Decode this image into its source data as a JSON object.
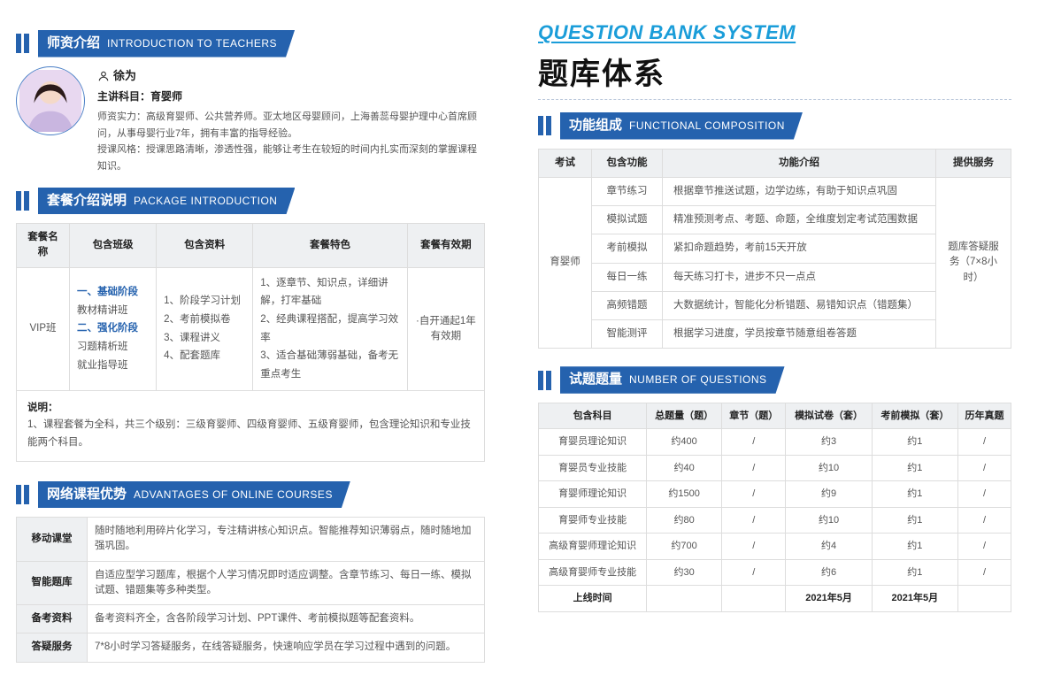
{
  "colors": {
    "primary": "#2562ae",
    "accent": "#1a9dd9",
    "border": "#dddddd",
    "header_bg": "#eef0f2",
    "text": "#333333",
    "muted": "#555555"
  },
  "sections": {
    "teachers": {
      "cn": "师资介绍",
      "en": "INTRODUCTION TO TEACHERS"
    },
    "package": {
      "cn": "套餐介绍说明",
      "en": "PACKAGE INTRODUCTION"
    },
    "advantage": {
      "cn": "网络课程优势",
      "en": "ADVANTAGES OF ONLINE COURSES"
    },
    "functional": {
      "cn": "功能组成",
      "en": "FUNCTIONAL COMPOSITION"
    },
    "questions": {
      "cn": "试题题量",
      "en": "NUMBER OF QUESTIONS"
    }
  },
  "teacher": {
    "name": "徐为",
    "subject_label": "主讲科目：育婴师",
    "strength_label": "师资实力：",
    "strength": "高级育婴师、公共营养师。亚太地区母婴顾问，上海善蕊母婴护理中心首席顾问，从事母婴行业7年，拥有丰富的指导经验。",
    "style_label": "授课风格：",
    "style": "授课思路清晰，渗透性强，能够让考生在较短的时间内扎实而深刻的掌握课程知识。"
  },
  "package_table": {
    "headers": [
      "套餐名称",
      "包含班级",
      "包含资料",
      "套餐特色",
      "套餐有效期"
    ],
    "row": {
      "name": "VIP班",
      "classes": {
        "stage1": "一、基础阶段",
        "c1": "教材精讲班",
        "stage2": "二、强化阶段",
        "c2": "习题精析班",
        "c3": "就业指导班"
      },
      "materials": [
        "1、阶段学习计划",
        "2、考前模拟卷",
        "3、课程讲义",
        "4、配套题库"
      ],
      "features": [
        "1、逐章节、知识点，详细讲解，打牢基础",
        "2、经典课程搭配，提高学习效率",
        "3、适合基础薄弱基础，备考无重点考生"
      ],
      "validity": "·自开通起1年有效期"
    },
    "note_label": "说明：",
    "note": "1、课程套餐为全科，共三个级别：三级育婴师、四级育婴师、五级育婴师，包含理论知识和专业技能两个科目。"
  },
  "advantages": [
    {
      "name": "移动课堂",
      "desc": "随时随地利用碎片化学习，专注精讲核心知识点。智能推荐知识薄弱点，随时随地加强巩固。"
    },
    {
      "name": "智能题库",
      "desc": "自适应型学习题库，根据个人学习情况即时适应调整。含章节练习、每日一练、模拟试题、错题集等多种类型。"
    },
    {
      "name": "备考资料",
      "desc": "备考资料齐全，含各阶段学习计划、PPT课件、考前模拟题等配套资料。"
    },
    {
      "name": "答疑服务",
      "desc": "7*8小时学习答疑服务，在线答疑服务，快速响应学员在学习过程中遇到的问题。"
    }
  ],
  "bank_header": {
    "en": "QUESTION BANK SYSTEM",
    "cn": "题库体系"
  },
  "functional_table": {
    "headers": [
      "考试",
      "包含功能",
      "功能介绍",
      "提供服务"
    ],
    "exam": "育婴师",
    "service": "题库答疑服务（7×8小时）",
    "rows": [
      {
        "fn": "章节练习",
        "desc": "根据章节推送试题，边学边练，有助于知识点巩固"
      },
      {
        "fn": "模拟试题",
        "desc": "精准预测考点、考题、命题，全维度划定考试范围数据"
      },
      {
        "fn": "考前模拟",
        "desc": "紧扣命题趋势，考前15天开放"
      },
      {
        "fn": "每日一练",
        "desc": "每天练习打卡，进步不只一点点"
      },
      {
        "fn": "高频错题",
        "desc": "大数据统计，智能化分析错题、易错知识点（错题集）"
      },
      {
        "fn": "智能测评",
        "desc": "根据学习进度，学员按章节随意组卷答题"
      }
    ]
  },
  "question_count": {
    "headers": [
      "包含科目",
      "总题量（题）",
      "章节（题）",
      "模拟试卷（套）",
      "考前模拟（套）",
      "历年真题"
    ],
    "rows": [
      [
        "育婴员理论知识",
        "约400",
        "/",
        "约3",
        "约1",
        "/"
      ],
      [
        "育婴员专业技能",
        "约40",
        "/",
        "约10",
        "约1",
        "/"
      ],
      [
        "育婴师理论知识",
        "约1500",
        "/",
        "约9",
        "约1",
        "/"
      ],
      [
        "育婴师专业技能",
        "约80",
        "/",
        "约10",
        "约1",
        "/"
      ],
      [
        "高级育婴师理论知识",
        "约700",
        "/",
        "约4",
        "约1",
        "/"
      ],
      [
        "高级育婴师专业技能",
        "约30",
        "/",
        "约6",
        "约1",
        "/"
      ]
    ],
    "footer": [
      "上线时间",
      "",
      "",
      "2021年5月",
      "2021年5月",
      ""
    ]
  }
}
